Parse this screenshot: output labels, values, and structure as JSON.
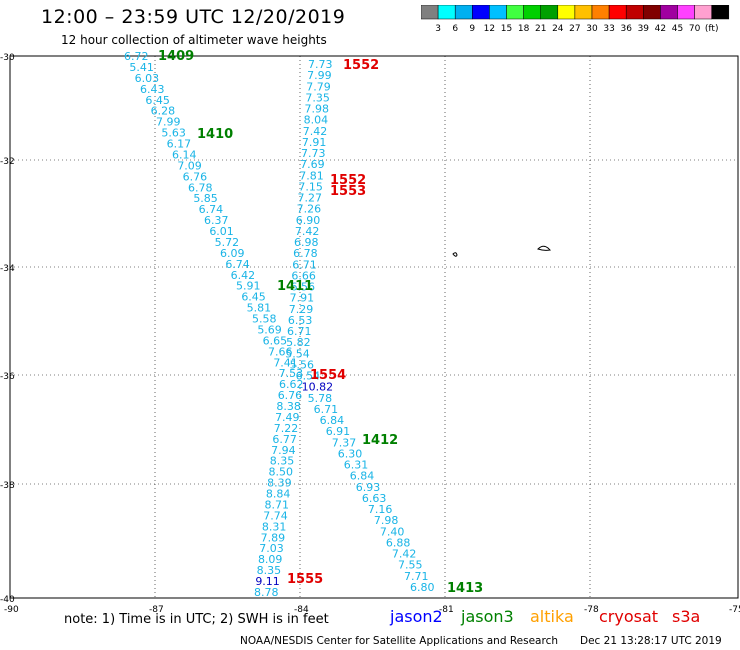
{
  "header": {
    "title": "12:00  –  23:59  UTC  12/20/2019",
    "subtitle": "12 hour collection of altimeter wave heights"
  },
  "legend": {
    "colors": [
      "#808080",
      "#00ffff",
      "#00b0f0",
      "#0000ff",
      "#00c0ff",
      "#40ff40",
      "#00d000",
      "#00a000",
      "#ffff00",
      "#ffc000",
      "#ff8000",
      "#ff0000",
      "#c00000",
      "#800000",
      "#a000a0",
      "#ff40ff",
      "#ffa0d0",
      "#000000"
    ],
    "labels": [
      "3",
      "6",
      "9",
      "12",
      "15",
      "18",
      "21",
      "24",
      "27",
      "30",
      "33",
      "36",
      "39",
      "42",
      "45",
      "70",
      "(ft)"
    ]
  },
  "axes": {
    "lat_labels": [
      "-30",
      "-32",
      "-34",
      "-36",
      "-38",
      "-40"
    ],
    "lon_labels": [
      "-90",
      "-87",
      "-84",
      "-81",
      "-78",
      "-75"
    ]
  },
  "passes": [
    {
      "label": "1409",
      "color": "#008000"
    },
    {
      "label": "1410",
      "color": "#008000"
    },
    {
      "label": "1411",
      "color": "#008000"
    },
    {
      "label": "1412",
      "color": "#008000"
    },
    {
      "label": "1413",
      "color": "#008000"
    },
    {
      "label": "1552",
      "color": "#e00000"
    },
    {
      "label": "1552",
      "color": "#e00000"
    },
    {
      "label": "1553",
      "color": "#e00000"
    },
    {
      "label": "1554",
      "color": "#e00000"
    },
    {
      "label": "1555",
      "color": "#e00000"
    }
  ],
  "tracks": {
    "left_descending": [
      "6.72",
      "5.41",
      "6.03",
      "6.43",
      "6.45",
      "6.28",
      "7.99",
      "5.63",
      "6.17",
      "6.14",
      "7.09",
      "6.76",
      "6.78",
      "5.85",
      "6.74",
      "6.37",
      "6.01",
      "5.72",
      "6.09",
      "6.74",
      "6.42",
      "5.91",
      "6.45",
      "5.81",
      "5.58",
      "5.69",
      "6.65",
      "7.66",
      "7.41",
      "7.53",
      "6.62",
      "6.76",
      "8.38",
      "7.49",
      "7.22",
      "6.77",
      "7.94",
      "8.35",
      "8.50",
      "8.39",
      "8.84",
      "8.71",
      "7.74",
      "8.31",
      "7.89",
      "7.03",
      "8.09",
      "8.35",
      "9.11",
      "8.78"
    ],
    "middle_vertical": [
      "7.73",
      "7.99",
      "7.79",
      "7.35",
      "7.98",
      "8.04",
      "7.42",
      "7.91",
      "7.73",
      "7.69",
      "7.81",
      "7.15",
      "7.27",
      "7.26",
      "6.90",
      "7.42",
      "6.98",
      "6.78",
      "6.71",
      "6.66",
      "6.56",
      "7.91",
      "7.29",
      "6.53",
      "6.71",
      "5.82",
      "5.54",
      "5.56",
      "6.54",
      "10.82",
      "5.78",
      "6.71",
      "6.84",
      "6.91",
      "7.37",
      "6.30",
      "6.31",
      "6.84",
      "6.93",
      "6.63",
      "7.16",
      "7.98",
      "7.40",
      "6.88",
      "7.42",
      "7.55",
      "7.71",
      "6.80"
    ],
    "highlight_blue": [
      "10.82",
      "9.11"
    ]
  },
  "note": "note:  1) Time is in UTC;  2) SWH is in feet",
  "satellites": [
    {
      "name": "jason2",
      "color": "#0000ff"
    },
    {
      "name": "jason3",
      "color": "#008000"
    },
    {
      "name": "altika",
      "color": "#ffa000"
    },
    {
      "name": "cryosat",
      "color": "#e00000"
    },
    {
      "name": "s3a",
      "color": "#e00000"
    }
  ],
  "footer": {
    "center": "NOAA/NESDIS Center for Satellite Applications and Research",
    "timestamp": "Dec 21 13:28:17 UTC 2019"
  }
}
